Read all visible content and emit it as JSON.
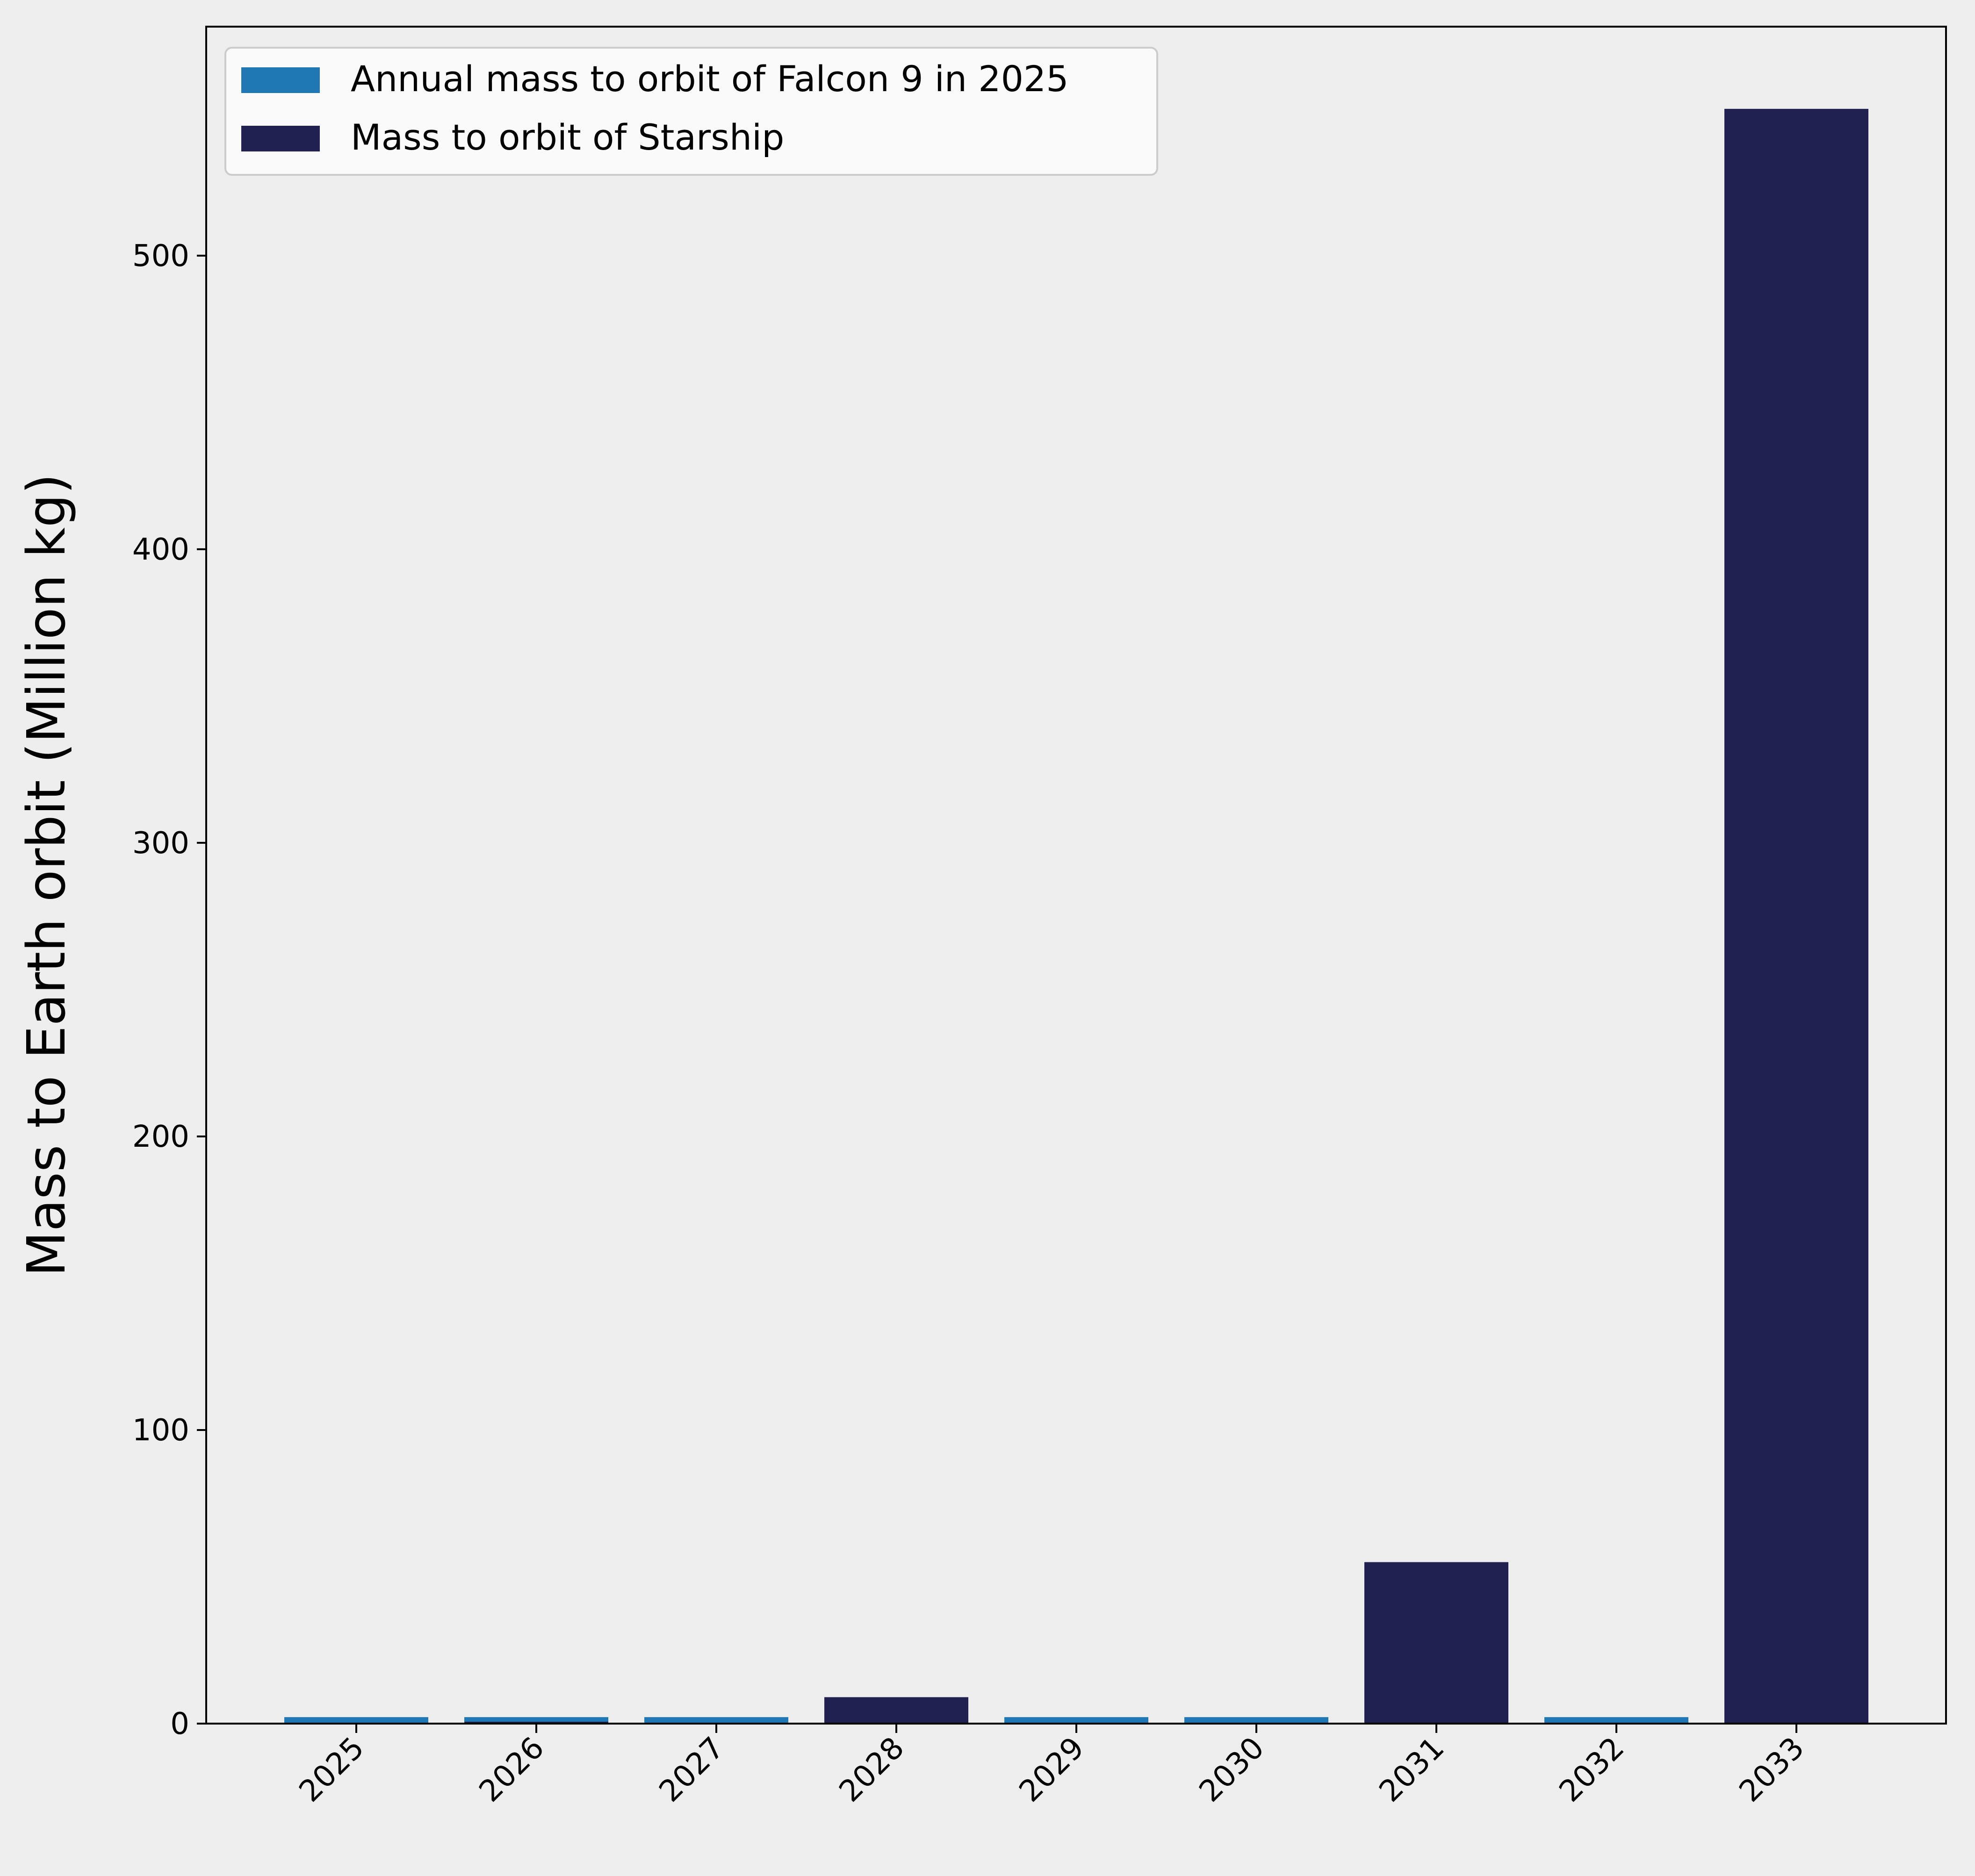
{
  "chart_data": {
    "type": "bar",
    "title": "",
    "xlabel": "",
    "ylabel": "Mass to Earth orbit (Million kg)",
    "categories": [
      "2025",
      "2026",
      "2027",
      "2028",
      "2029",
      "2030",
      "2031",
      "2032",
      "2033"
    ],
    "series": [
      {
        "name": "Annual mass to orbit of Falcon 9 in 2025",
        "color": "#1f77b4",
        "values": [
          2.2,
          2.2,
          2.2,
          null,
          2.2,
          2.2,
          null,
          2.2,
          null
        ]
      },
      {
        "name": "Mass to orbit of Starship",
        "color": "#212151",
        "values": [
          null,
          0.5,
          null,
          9,
          null,
          null,
          55,
          null,
          550
        ]
      }
    ],
    "ylim": [
      0,
      578
    ],
    "yticks": [
      0,
      100,
      200,
      300,
      400,
      500
    ],
    "xtick_rotation": 45,
    "legend_position": "upper-left",
    "grid": false,
    "background_color": "#eeeeee"
  }
}
